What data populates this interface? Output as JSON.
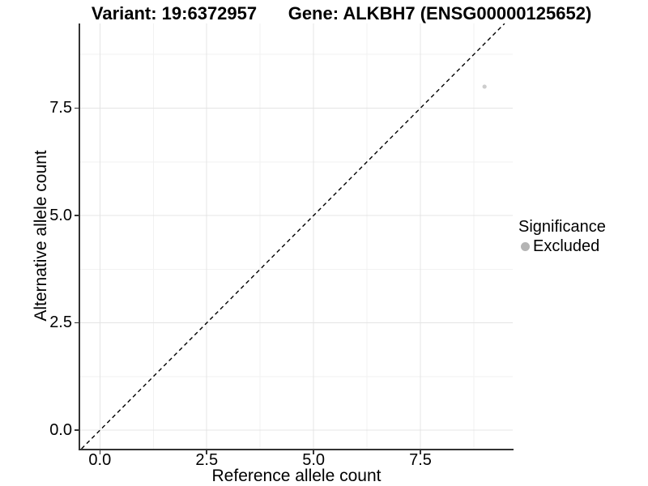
{
  "chart_data": {
    "type": "scatter",
    "title_left": "Variant: 19:6372957",
    "title_right": "Gene: ALKBH7 (ENSG00000125652)",
    "xlabel": "Reference allele count",
    "ylabel": "Alternative allele count",
    "x_ticks": {
      "values": [
        0,
        2.5,
        5,
        7.5
      ],
      "labels": [
        "0.0",
        "2.5",
        "5.0",
        "7.5"
      ]
    },
    "y_ticks": {
      "values": [
        0,
        2.5,
        5,
        7.5
      ],
      "labels": [
        "0.0",
        "2.5",
        "5.0",
        "7.5"
      ]
    },
    "xlim": [
      -0.48,
      9.66
    ],
    "ylim": [
      -0.43,
      9.47
    ],
    "minor_interval": 1.25,
    "grid": {
      "major_color": "#e4e4e4",
      "minor_color": "#f2f2f2",
      "background": "#ffffff"
    },
    "identity_line": {
      "slope": 1,
      "intercept": 0,
      "style": "dashed",
      "color": "#000000"
    },
    "series": [
      {
        "name": "Excluded",
        "color": "#cdcdcd",
        "point_radius": 2.6,
        "points": [
          [
            9,
            8
          ]
        ]
      }
    ],
    "legend": {
      "position": "right",
      "title": "Significance",
      "items": [
        {
          "label": "Excluded",
          "color": "#b4b4b4"
        }
      ]
    },
    "axis_color": "#333333",
    "text_color": "#000000"
  }
}
